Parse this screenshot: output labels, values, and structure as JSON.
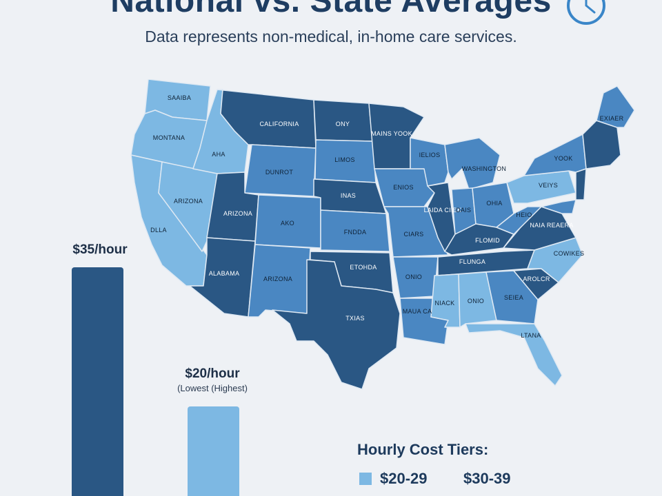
{
  "header": {
    "title": "National vs. State Averages",
    "subtitle": "Data represents non-medical, in-home care services."
  },
  "icons": {
    "clock": "clock-icon"
  },
  "colors": {
    "background": "#eef1f5",
    "dark_blue": "#2a5784",
    "mid_blue": "#4a87c2",
    "light_blue": "#7db8e3",
    "title": "#1e3d62"
  },
  "bars": {
    "national": {
      "value_label": "$35/hour",
      "value": 35
    },
    "lowest": {
      "value_label": "$20/hour",
      "note": "(Lowest (Highest)",
      "value": 20
    }
  },
  "legend": {
    "title": "Hourly Cost Tiers:",
    "tiers": [
      {
        "label": "$20-29",
        "color": "#7db8e3"
      },
      {
        "label": "$30-39",
        "color": "#2a5784"
      }
    ]
  },
  "map": {
    "states": [
      {
        "id": "WA",
        "label": "SAAIBA",
        "tier": "light"
      },
      {
        "id": "OR",
        "label": "MONTANA",
        "tier": "light"
      },
      {
        "id": "CA",
        "label": "DLLA",
        "tier": "light"
      },
      {
        "id": "NV",
        "label": "ARIZONA",
        "tier": "light"
      },
      {
        "id": "ID",
        "label": "AHA",
        "tier": "light"
      },
      {
        "id": "MT",
        "label": "CALIFORNIA",
        "tier": "dark"
      },
      {
        "id": "WY",
        "label": "DUNROT",
        "tier": "mid"
      },
      {
        "id": "UT",
        "label": "ARIZONA",
        "tier": "dark"
      },
      {
        "id": "AZ",
        "label": "ALABAMA",
        "tier": "dark"
      },
      {
        "id": "CO",
        "label": "AKO",
        "tier": "mid"
      },
      {
        "id": "NM",
        "label": "ARIZONA",
        "tier": "mid"
      },
      {
        "id": "ND",
        "label": "ONY",
        "tier": "dark"
      },
      {
        "id": "SD",
        "label": "LIMOS",
        "tier": "mid"
      },
      {
        "id": "NE",
        "label": "INAS",
        "tier": "dark"
      },
      {
        "id": "KS",
        "label": "FNDDA",
        "tier": "mid"
      },
      {
        "id": "OK",
        "label": "ETOHDA",
        "tier": "dark"
      },
      {
        "id": "TX",
        "label": "TXIAS",
        "tier": "dark"
      },
      {
        "id": "MN",
        "label": "MAINS YOOK",
        "tier": "dark"
      },
      {
        "id": "IA",
        "label": "ENIOS",
        "tier": "mid"
      },
      {
        "id": "MO",
        "label": "CIARS",
        "tier": "mid"
      },
      {
        "id": "AR",
        "label": "ONIO",
        "tier": "mid"
      },
      {
        "id": "LA",
        "label": "MAUA CA",
        "tier": "mid"
      },
      {
        "id": "WI",
        "label": "IELIOS",
        "tier": "mid"
      },
      {
        "id": "MI",
        "label": "WASHINGTON",
        "tier": "mid"
      },
      {
        "id": "IL",
        "label": "LAIDA CIIBK",
        "tier": "dark"
      },
      {
        "id": "IN",
        "label": "OAIS",
        "tier": "mid"
      },
      {
        "id": "OH",
        "label": "OHIA",
        "tier": "mid"
      },
      {
        "id": "KY",
        "label": "FLOMID",
        "tier": "dark"
      },
      {
        "id": "TN",
        "label": "FLUNGA",
        "tier": "dark"
      },
      {
        "id": "MS",
        "label": "NIACK",
        "tier": "light"
      },
      {
        "id": "AL",
        "label": "ONIO",
        "tier": "light"
      },
      {
        "id": "GA",
        "label": "SEIEA",
        "tier": "mid"
      },
      {
        "id": "FL",
        "label": "LTANA",
        "tier": "light"
      },
      {
        "id": "SC",
        "label": "AROLCR",
        "tier": "dark"
      },
      {
        "id": "NC",
        "label": "COWIKES",
        "tier": "light"
      },
      {
        "id": "VA",
        "label": "NAIA REAERA",
        "tier": "dark"
      },
      {
        "id": "WV",
        "label": "HEIO",
        "tier": "mid"
      },
      {
        "id": "PA",
        "label": "VEIYS",
        "tier": "light"
      },
      {
        "id": "NY",
        "label": "YOOK",
        "tier": "mid"
      },
      {
        "id": "ME",
        "label": "EXIAER",
        "tier": "mid"
      },
      {
        "id": "NJ",
        "label": "",
        "tier": "mid"
      },
      {
        "id": "MD",
        "label": "",
        "tier": "mid"
      },
      {
        "id": "NE_SMALL",
        "label": "",
        "tier": "mid"
      }
    ]
  }
}
